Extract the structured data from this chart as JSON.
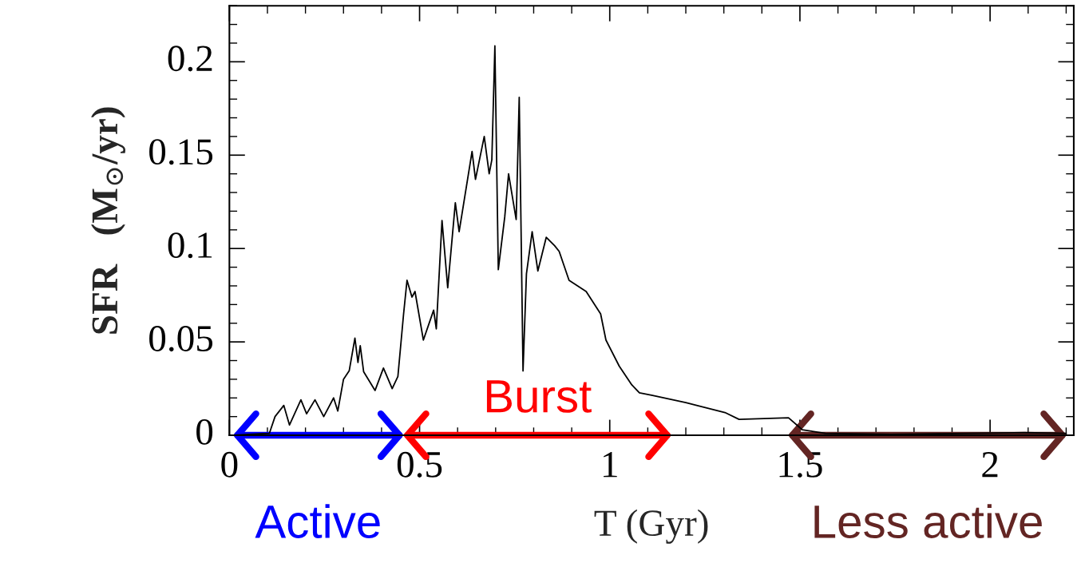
{
  "chart_data": {
    "type": "line",
    "xlabel": "T (Gyr)",
    "ylabel": "SFR   (M$_{⊙}$/yr)",
    "xlim": [
      0,
      2.22
    ],
    "ylim": [
      0,
      0.23
    ],
    "xticks": [
      0,
      0.5,
      1,
      1.5,
      2
    ],
    "yticks": [
      0,
      0.05,
      0.1,
      0.15,
      0.2
    ],
    "grid": false,
    "legend": false,
    "marker": "none",
    "line_style": "solid",
    "series": [
      {
        "color": "#000000",
        "x": [
          0,
          0.105,
          0.12,
          0.143,
          0.158,
          0.188,
          0.203,
          0.225,
          0.248,
          0.274,
          0.285,
          0.3,
          0.315,
          0.33,
          0.338,
          0.344,
          0.353,
          0.383,
          0.405,
          0.428,
          0.443,
          0.458,
          0.467,
          0.48,
          0.488,
          0.51,
          0.537,
          0.544,
          0.559,
          0.574,
          0.594,
          0.604,
          0.638,
          0.647,
          0.67,
          0.683,
          0.69,
          0.698,
          0.707,
          0.724,
          0.734,
          0.754,
          0.762,
          0.772,
          0.781,
          0.796,
          0.811,
          0.833,
          0.855,
          0.867,
          0.893,
          0.938,
          0.976,
          0.99,
          1.025,
          1.058,
          1.078,
          1.11,
          1.2,
          1.305,
          1.34,
          1.47,
          1.506,
          1.567,
          1.74,
          2.09,
          2.2
        ],
        "values": [
          0,
          0.001,
          0.01,
          0.016,
          0.0055,
          0.019,
          0.0115,
          0.019,
          0.01,
          0.02,
          0.013,
          0.03,
          0.0345,
          0.052,
          0.039,
          0.048,
          0.034,
          0.024,
          0.036,
          0.025,
          0.0315,
          0.065,
          0.083,
          0.074,
          0.077,
          0.051,
          0.067,
          0.057,
          0.115,
          0.079,
          0.1245,
          0.109,
          0.152,
          0.137,
          0.16,
          0.14,
          0.1475,
          0.2085,
          0.0887,
          0.117,
          0.14,
          0.1155,
          0.181,
          0.0345,
          0.0865,
          0.109,
          0.088,
          0.106,
          0.1015,
          0.0985,
          0.083,
          0.077,
          0.065,
          0.051,
          0.037,
          0.027,
          0.0227,
          0.0215,
          0.0175,
          0.012,
          0.0085,
          0.0094,
          0.003,
          0.001,
          0.0005,
          0.0014,
          0.001
        ]
      },
      {
        "color": "#0000ff",
        "x": [
          0.021,
          0.447
        ],
        "values": [
          0,
          0
        ]
      },
      {
        "color": "#ff0000",
        "x": [
          0.468,
          1.151
        ],
        "values": [
          0,
          0
        ]
      },
      {
        "color": "#632523",
        "x": [
          1.48,
          2.19
        ],
        "values": [
          0,
          0
        ]
      }
    ],
    "annotations": [
      {
        "text": "Active",
        "x": 0.234,
        "y": 0
      },
      {
        "text": "Burst",
        "x": 0.81,
        "y": 0
      },
      {
        "text": "Less active",
        "x": 1.835,
        "y": 0
      }
    ]
  }
}
